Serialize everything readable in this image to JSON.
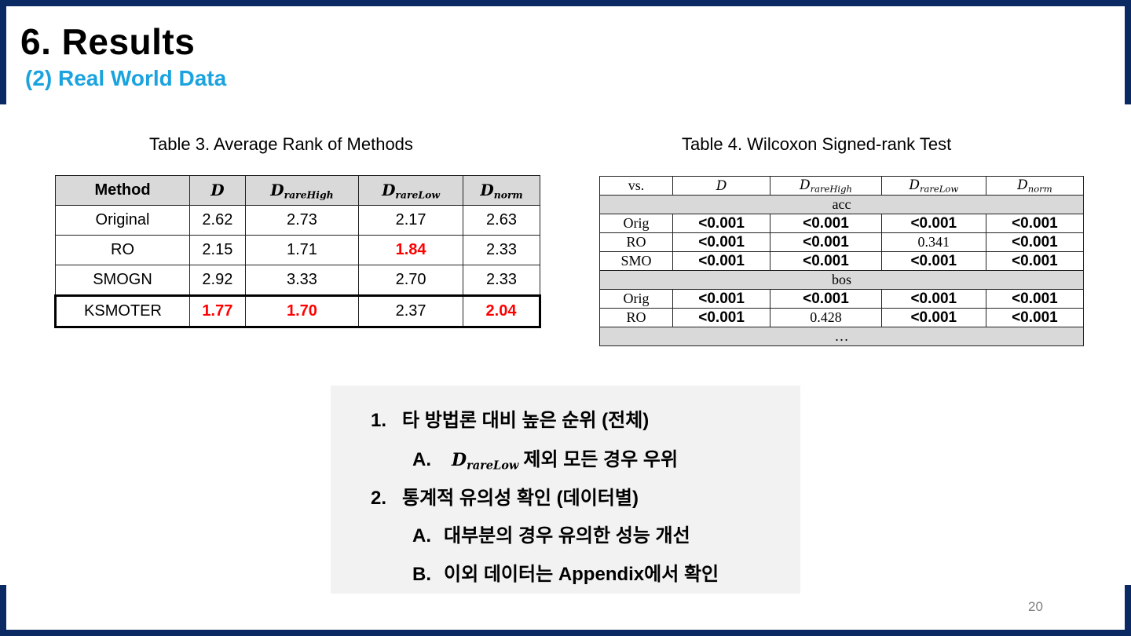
{
  "slide": {
    "title": "6. Results",
    "subtitle": "(2) Real World Data",
    "page_number": "20"
  },
  "table3": {
    "caption": "Table 3. Average Rank of Methods",
    "headers": {
      "method": "Method",
      "d": "D",
      "d_rare_high_base": "D",
      "d_rare_high_sub": "rareHigh",
      "d_rare_low_base": "D",
      "d_rare_low_sub": "rareLow",
      "d_norm_base": "D",
      "d_norm_sub": "norm"
    },
    "rows": [
      {
        "method": "Original",
        "d": "2.62",
        "rare_high": "2.73",
        "rare_low": "2.17",
        "norm": "2.63"
      },
      {
        "method": "RO",
        "d": "2.15",
        "rare_high": "1.71",
        "rare_low": "1.84",
        "norm": "2.33"
      },
      {
        "method": "SMOGN",
        "d": "2.92",
        "rare_high": "3.33",
        "rare_low": "2.70",
        "norm": "2.33"
      },
      {
        "method": "KSMOTER",
        "d": "1.77",
        "rare_high": "1.70",
        "rare_low": "2.37",
        "norm": "2.04"
      }
    ],
    "highlight_color": "#ff0000"
  },
  "table4": {
    "caption": "Table 4. Wilcoxon Signed-rank Test",
    "headers": {
      "vs": "vs.",
      "d": "D",
      "d_rare_high_base": "D",
      "d_rare_high_sub": "rareHigh",
      "d_rare_low_base": "D",
      "d_rare_low_sub": "rareLow",
      "d_norm_base": "D",
      "d_norm_sub": "norm"
    },
    "groups": [
      {
        "name": "acc",
        "rows": [
          {
            "vs": "Orig",
            "d": "<0.001",
            "rare_high": "<0.001",
            "rare_low": "<0.001",
            "norm": "<0.001"
          },
          {
            "vs": "RO",
            "d": "<0.001",
            "rare_high": "<0.001",
            "rare_low": "0.341",
            "norm": "<0.001"
          },
          {
            "vs": "SMO",
            "d": "<0.001",
            "rare_high": "<0.001",
            "rare_low": "<0.001",
            "norm": "<0.001"
          }
        ]
      },
      {
        "name": "bos",
        "rows": [
          {
            "vs": "Orig",
            "d": "<0.001",
            "rare_high": "<0.001",
            "rare_low": "<0.001",
            "norm": "<0.001"
          },
          {
            "vs": "RO",
            "d": "<0.001",
            "rare_high": "0.428",
            "rare_low": "<0.001",
            "norm": "<0.001"
          }
        ]
      }
    ],
    "ellipsis": "…"
  },
  "summary": {
    "item1_num": "1.",
    "item1_text": "타 방법론 대비 높은 순위 (전체)",
    "item1a_num": "A.",
    "item1a_math_base": "D",
    "item1a_math_sub": "rareLow",
    "item1a_text": "제외 모든 경우 우위",
    "item2_num": "2.",
    "item2_text": "통계적 유의성 확인 (데이터별)",
    "item2a_num": "A.",
    "item2a_text": "대부분의 경우 유의한 성능 개선",
    "item2b_num": "B.",
    "item2b_text": "이외 데이터는 Appendix에서 확인"
  }
}
